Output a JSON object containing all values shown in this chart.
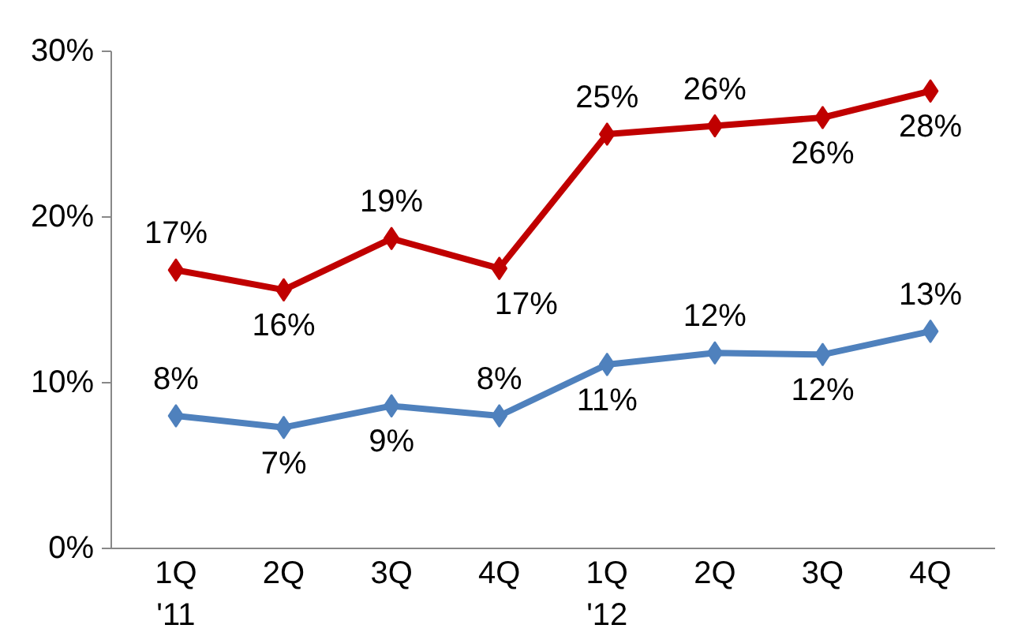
{
  "chart_data": {
    "type": "line",
    "categories": [
      "1Q\n'11",
      "2Q",
      "3Q",
      "4Q",
      "1Q\n'12",
      "2Q",
      "3Q",
      "4Q"
    ],
    "series": [
      {
        "color": "#c00000",
        "values": [
          16.8,
          15.6,
          18.7,
          16.9,
          25.0,
          25.5,
          26.0,
          27.6
        ],
        "value_labels": [
          "17%",
          "16%",
          "19%",
          "17%",
          "25%",
          "26%",
          "26%",
          "28%"
        ]
      },
      {
        "color": "#4f81bd",
        "values": [
          8.0,
          7.3,
          8.6,
          8.0,
          11.1,
          11.8,
          11.7,
          13.1
        ],
        "value_labels": [
          "8%",
          "7%",
          "9%",
          "8%",
          "11%",
          "12%",
          "12%",
          "13%"
        ]
      }
    ],
    "ylim": [
      0,
      30
    ],
    "yticks": [
      {
        "value": 0,
        "label": "0%"
      },
      {
        "value": 10,
        "label": "10%"
      },
      {
        "value": 20,
        "label": "20%"
      },
      {
        "value": 30,
        "label": "30%"
      }
    ],
    "marker": "diamond",
    "grid": false
  }
}
